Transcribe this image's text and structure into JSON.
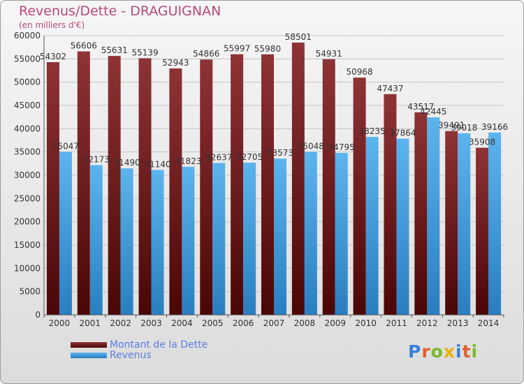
{
  "chart_data": {
    "type": "bar",
    "title": "Revenus/Dette - DRAGUIGNAN",
    "subtitle": "(en milliers d'€)",
    "categories": [
      "2000",
      "2001",
      "2002",
      "2003",
      "2004",
      "2005",
      "2006",
      "2007",
      "2008",
      "2009",
      "2010",
      "2011",
      "2012",
      "2013",
      "2014"
    ],
    "series": [
      {
        "name": "Montant de la Dette",
        "color": "#7a1f22",
        "values": [
          54302,
          56606,
          55631,
          55139,
          52943,
          54866,
          55997,
          55980,
          58501,
          54931,
          50968,
          47437,
          43517,
          39491,
          35908
        ]
      },
      {
        "name": "Revenus",
        "color": "#4aa3e0",
        "values": [
          35047,
          32173,
          31490,
          31140,
          31823,
          32637,
          32705,
          33573,
          35048,
          34795,
          38235,
          37864,
          42445,
          39018,
          39166
        ]
      }
    ],
    "ylim": [
      0,
      60000
    ],
    "yticks": [
      0,
      5000,
      10000,
      15000,
      20000,
      25000,
      30000,
      35000,
      40000,
      45000,
      50000,
      55000,
      60000
    ],
    "grid": true,
    "legend_position": "bottom-left"
  },
  "brand": {
    "text": "Proxiti",
    "colors": [
      "#3a7fd8",
      "#e06030",
      "#7ab82a",
      "#e8b000",
      "#3a7fd8",
      "#e06030",
      "#7ab82a"
    ]
  }
}
